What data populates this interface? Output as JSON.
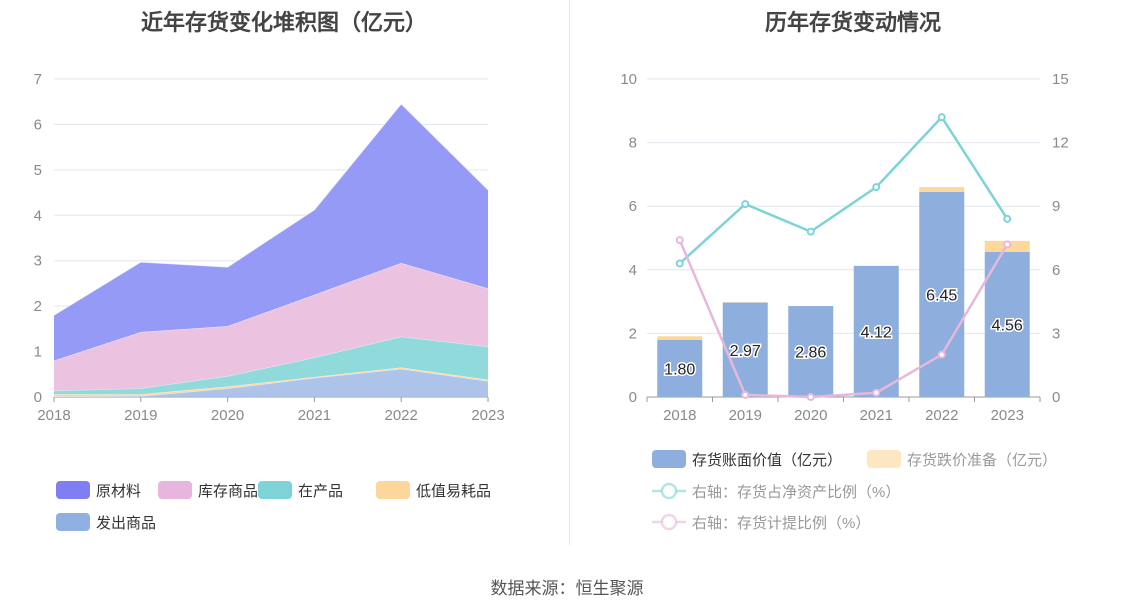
{
  "left_chart": {
    "title": "近年存货变化堆积图（亿元）",
    "chart_data": {
      "type": "area",
      "stacked": true,
      "categories": [
        "2018",
        "2019",
        "2020",
        "2021",
        "2022",
        "2023"
      ],
      "ylim": [
        0,
        7
      ],
      "yticks": [
        "0",
        "1",
        "2",
        "3",
        "4",
        "5",
        "6",
        "7"
      ],
      "series": [
        {
          "name": "发出商品",
          "color": "#aac0e8",
          "values": [
            0.01,
            0.02,
            0.19,
            0.42,
            0.62,
            0.35
          ]
        },
        {
          "name": "低值易耗品",
          "color": "#fcd69a",
          "values": [
            0.05,
            0.04,
            0.04,
            0.02,
            0.03,
            0.03
          ]
        },
        {
          "name": "在产品",
          "color": "#8ad8da",
          "values": [
            0.08,
            0.13,
            0.23,
            0.43,
            0.68,
            0.73
          ]
        },
        {
          "name": "库存商品",
          "color": "#ebbfdf",
          "values": [
            0.66,
            1.24,
            1.1,
            1.38,
            1.62,
            1.28
          ]
        },
        {
          "name": "原材料",
          "color": "#8e95f6",
          "values": [
            1.0,
            1.54,
            1.3,
            1.87,
            3.5,
            2.17
          ]
        }
      ],
      "legend": [
        "原材料",
        "库存商品",
        "在产品",
        "低值易耗品",
        "发出商品"
      ],
      "legend_colors": [
        "#7f7ef2",
        "#e8b5dc",
        "#7dd3d6",
        "#fcd69a",
        "#8fb0e0"
      ],
      "legend_position": "bottom"
    }
  },
  "right_chart": {
    "title": "历年存货变动情况",
    "chart_data": {
      "type": "bar",
      "categories": [
        "2018",
        "2019",
        "2020",
        "2021",
        "2022",
        "2023"
      ],
      "ylim": [
        0,
        10
      ],
      "yticks": [
        "0",
        "2",
        "4",
        "6",
        "8",
        "10"
      ],
      "y2lim": [
        0,
        15
      ],
      "y2ticks": [
        "0",
        "3",
        "6",
        "9",
        "12",
        "15"
      ],
      "bars": [
        {
          "name": "存货账面价值（亿元）",
          "color": "#8eaedd",
          "values": [
            1.8,
            2.97,
            2.86,
            4.12,
            6.45,
            4.56
          ],
          "labels": [
            "1.80",
            "2.97",
            "2.86",
            "4.12",
            "6.45",
            "4.56"
          ]
        },
        {
          "name": "存货跌价准备（亿元）",
          "color": "#fdd89a",
          "values": [
            0.11,
            0.01,
            0.0,
            0.01,
            0.15,
            0.35
          ]
        }
      ],
      "lines": [
        {
          "name": "右轴：存货占净资产比例（%）",
          "color": "#7dd3d6",
          "values": [
            6.3,
            9.1,
            7.8,
            9.9,
            13.2,
            8.4
          ]
        },
        {
          "name": "右轴：存货计提比例（%）",
          "color": "#e6b8da",
          "values": [
            7.4,
            0.1,
            0.0,
            0.2,
            2.0,
            7.2
          ]
        }
      ],
      "legend_position": "bottom"
    }
  },
  "source": "数据来源：恒生聚源"
}
